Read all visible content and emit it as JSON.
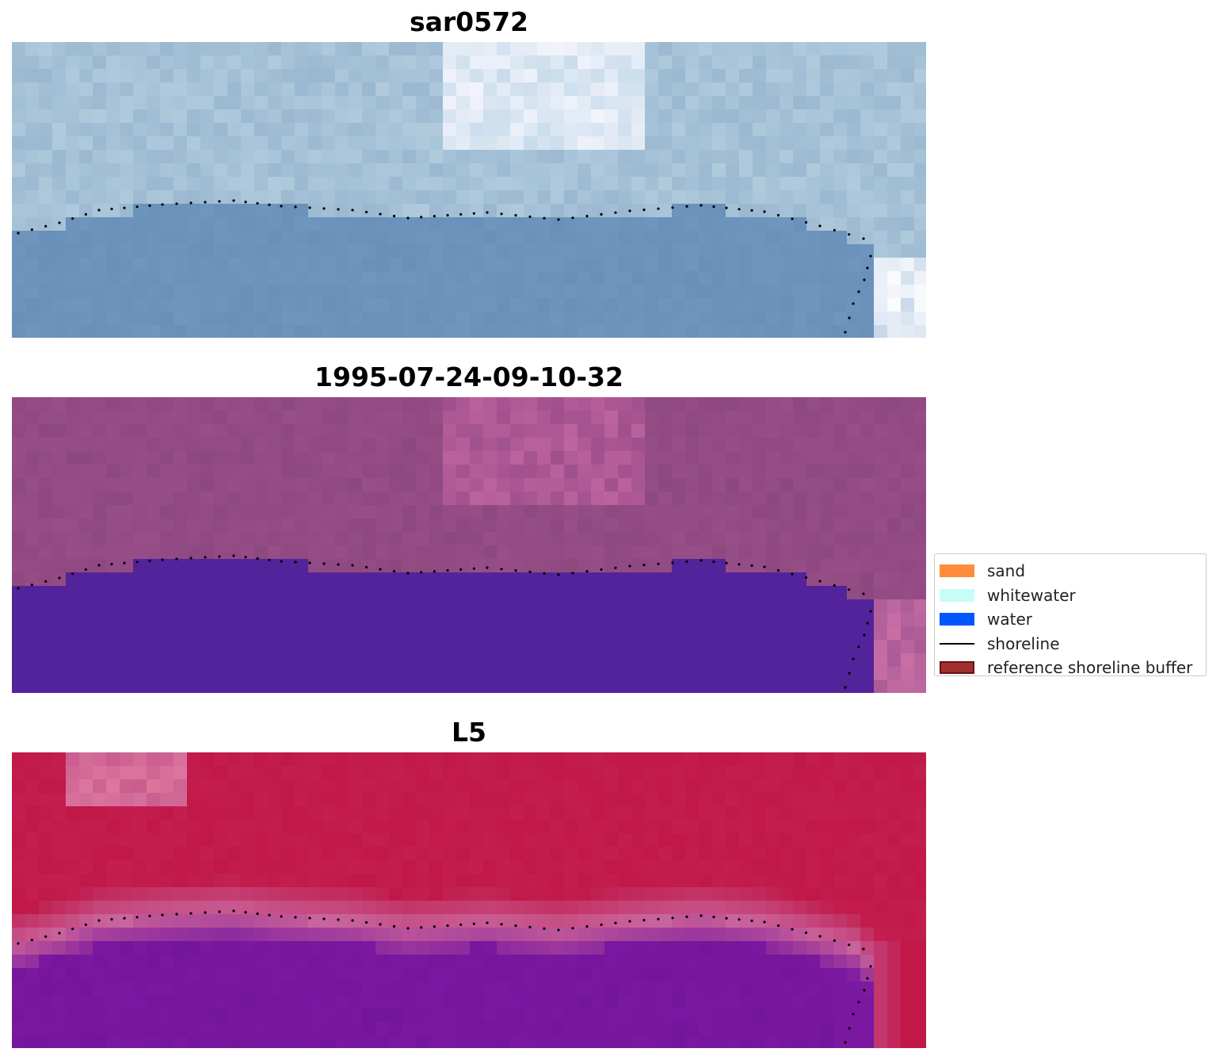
{
  "panels": [
    {
      "title": "sar0572",
      "style": "rgb"
    },
    {
      "title": "1995-07-24-09-10-32",
      "style": "classified"
    },
    {
      "title": "L5",
      "style": "index"
    }
  ],
  "legend": {
    "items": [
      {
        "label": "sand",
        "kind": "patch",
        "color": "#ff8c3a"
      },
      {
        "label": "whitewater",
        "kind": "patch",
        "color": "#c8fcf8"
      },
      {
        "label": "water",
        "kind": "patch",
        "color": "#0055ff"
      },
      {
        "label": "shoreline",
        "kind": "line",
        "color": "#000000"
      },
      {
        "label": "reference shoreline buffer",
        "kind": "patch",
        "color": "#a03030",
        "edge": "#6b1010"
      }
    ]
  },
  "colors": {
    "rgb_water": "#6890b8",
    "rgb_land": "#9ab8d0",
    "class_water": "#52239a",
    "class_land": "#8e4880",
    "index_land": "#c01848",
    "index_water": "#7a18a0",
    "index_edge": "#c86098",
    "shoreline_dots": "#000000"
  }
}
